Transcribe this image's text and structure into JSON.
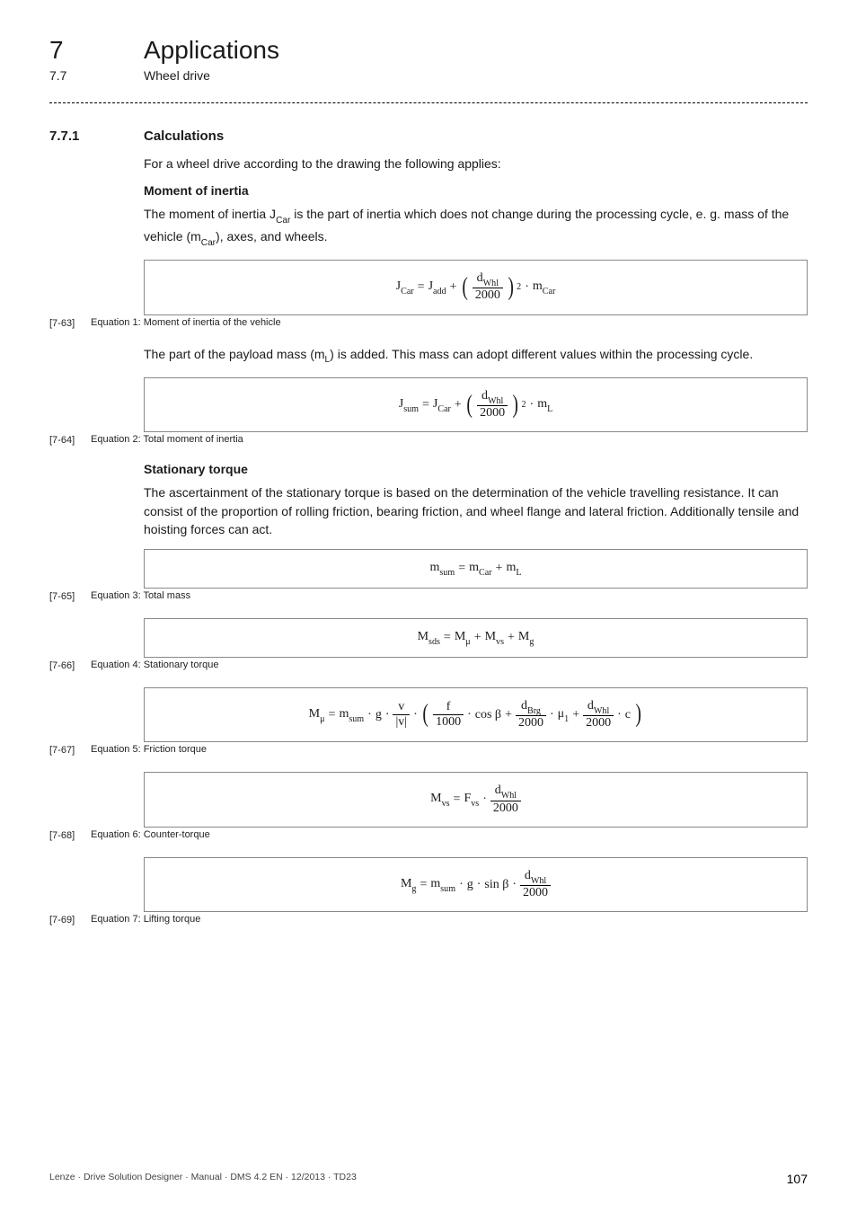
{
  "chapter": {
    "number": "7",
    "title": "Applications"
  },
  "section": {
    "number": "7.7",
    "title": "Wheel drive"
  },
  "subsection": {
    "number": "7.7.1",
    "title": "Calculations"
  },
  "intro": "For a wheel drive according to the drawing the following applies:",
  "moment_of_inertia": {
    "heading": "Moment of inertia",
    "p1_a": "The moment of inertia J",
    "p1_sub1": "Car",
    "p1_b": " is the part of inertia which does not change during the processing cycle, e. g. mass of the vehicle (m",
    "p1_sub2": "Car",
    "p1_c": "), axes, and wheels.",
    "eq1_ref": "[7-63]",
    "eq1_caption": "Equation 1: Moment of inertia of the vehicle",
    "p2_a": "The part of the payload mass (m",
    "p2_sub": "L",
    "p2_b": ") is added. This mass can adopt different values within the processing cycle.",
    "eq2_ref": "[7-64]",
    "eq2_caption": "Equation 2: Total moment of inertia"
  },
  "stationary_torque": {
    "heading": "Stationary torque",
    "p1": "The ascertainment of the stationary torque is based on the determination of the vehicle travelling resistance. It can consist of the proportion of rolling friction, bearing friction, and wheel flange and lateral friction. Additionally tensile and hoisting forces can act.",
    "eq3_ref": "[7-65]",
    "eq3_caption": "Equation 3: Total mass",
    "eq4_ref": "[7-66]",
    "eq4_caption": "Equation 4: Stationary torque",
    "eq5_ref": "[7-67]",
    "eq5_caption": "Equation 5: Friction torque",
    "eq6_ref": "[7-68]",
    "eq6_caption": "Equation 6: Counter-torque",
    "eq7_ref": "[7-69]",
    "eq7_caption": "Equation 7: Lifting torque"
  },
  "symbols": {
    "J": "J",
    "m": "m",
    "M": "M",
    "F": "F",
    "d": "d",
    "g": "g",
    "v": "v",
    "f": "f",
    "c": "c",
    "eq": " = ",
    "plus": " + ",
    "dot": " · ",
    "Car": "Car",
    "add": "add",
    "Whl": "Whl",
    "sum": "sum",
    "L": "L",
    "sds": "sds",
    "mu": "μ",
    "vs": "vs",
    "gsub": "g",
    "Brg": "Brg",
    "one": "1",
    "n2000": "2000",
    "n1000": "1000",
    "cosb": "cos β",
    "sinb": "sin β",
    "absv": "|v|",
    "exp2": "2"
  },
  "footer": {
    "left": "Lenze · Drive Solution Designer · Manual · DMS 4.2 EN · 12/2013 · TD23",
    "page": "107"
  }
}
